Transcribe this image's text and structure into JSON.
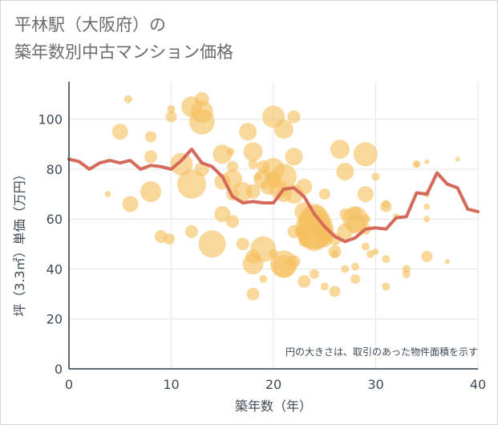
{
  "title_line1": "平林駅（大阪府）の",
  "title_line2": "築年数別中古マンション価格",
  "note": "円の大きさは、取引のあった物件面積を示す",
  "colors": {
    "bubble": "#f5c05f",
    "line": "#d5695a",
    "grid": "#e6e6e6",
    "axis": "#2f3a45"
  },
  "chart_data": {
    "type": "scatter",
    "xlabel": "築年数（年）",
    "ylabel": "坪（3.3㎡）単価（万円）",
    "xlim": [
      0,
      40
    ],
    "ylim": [
      0,
      115
    ],
    "xticks": [
      0,
      10,
      20,
      30,
      40
    ],
    "yticks": [
      0,
      20,
      40,
      60,
      80,
      100
    ],
    "grid": true,
    "average_line": [
      [
        0,
        84
      ],
      [
        1,
        83
      ],
      [
        2,
        80
      ],
      [
        3,
        82.5
      ],
      [
        4,
        83.5
      ],
      [
        5,
        82.5
      ],
      [
        6,
        83.5
      ],
      [
        7,
        80
      ],
      [
        8,
        81.5
      ],
      [
        9,
        81
      ],
      [
        10,
        80
      ],
      [
        11,
        83.5
      ],
      [
        12,
        88
      ],
      [
        13,
        82.5
      ],
      [
        14,
        81
      ],
      [
        15,
        77
      ],
      [
        16,
        69
      ],
      [
        17,
        66.5
      ],
      [
        18,
        67
      ],
      [
        19,
        66.5
      ],
      [
        20,
        66.5
      ],
      [
        21,
        72
      ],
      [
        22,
        72.5
      ],
      [
        23,
        69
      ],
      [
        24,
        62
      ],
      [
        25,
        57
      ],
      [
        26,
        53
      ],
      [
        27,
        51
      ],
      [
        28,
        52.5
      ],
      [
        29,
        56
      ],
      [
        30,
        56.5
      ],
      [
        31,
        56
      ],
      [
        32,
        60.5
      ],
      [
        33,
        61
      ],
      [
        34,
        70.5
      ],
      [
        35,
        70
      ],
      [
        36,
        78.5
      ],
      [
        37,
        74
      ],
      [
        38,
        72.5
      ],
      [
        39,
        64
      ],
      [
        40,
        63
      ]
    ],
    "bubbles": [
      [
        3.8,
        70,
        4
      ],
      [
        5,
        95,
        10
      ],
      [
        5.8,
        108,
        5
      ],
      [
        6,
        66,
        10
      ],
      [
        8,
        93,
        7
      ],
      [
        8,
        85,
        8
      ],
      [
        8,
        71,
        13
      ],
      [
        9,
        53,
        8
      ],
      [
        9.8,
        52,
        7
      ],
      [
        10,
        101,
        7
      ],
      [
        10,
        104,
        5
      ],
      [
        11,
        82,
        14
      ],
      [
        12,
        105,
        13
      ],
      [
        12,
        74,
        18
      ],
      [
        12,
        55,
        8
      ],
      [
        13,
        108,
        9
      ],
      [
        13,
        103,
        14
      ],
      [
        13,
        99,
        16
      ],
      [
        13,
        80,
        9
      ],
      [
        14,
        50,
        17
      ],
      [
        15,
        86,
        12
      ],
      [
        15,
        75,
        10
      ],
      [
        15,
        62,
        10
      ],
      [
        15.8,
        87,
        5
      ],
      [
        16,
        81,
        7
      ],
      [
        16,
        76,
        12
      ],
      [
        16,
        70,
        8
      ],
      [
        16,
        59,
        8
      ],
      [
        17,
        71,
        12
      ],
      [
        17,
        50,
        8
      ],
      [
        17.5,
        95,
        11
      ],
      [
        18,
        87,
        12
      ],
      [
        18,
        82,
        6
      ],
      [
        18,
        71,
        9
      ],
      [
        18,
        45,
        9
      ],
      [
        18,
        42,
        13
      ],
      [
        18,
        30,
        8
      ],
      [
        18.5,
        77,
        5
      ],
      [
        19,
        81,
        8
      ],
      [
        19,
        76,
        12
      ],
      [
        19,
        48,
        16
      ],
      [
        19,
        36,
        5
      ],
      [
        19.5,
        73,
        10
      ],
      [
        20,
        101,
        14
      ],
      [
        20,
        80,
        14
      ],
      [
        20,
        76,
        10
      ],
      [
        20,
        46,
        6
      ],
      [
        20.5,
        72,
        12
      ],
      [
        21,
        96,
        12
      ],
      [
        21,
        77,
        16
      ],
      [
        21,
        70,
        10
      ],
      [
        21,
        42,
        17
      ],
      [
        21,
        41,
        14
      ],
      [
        21.5,
        43,
        5
      ],
      [
        22,
        101,
        8
      ],
      [
        22,
        85,
        11
      ],
      [
        22,
        70,
        12
      ],
      [
        22,
        55,
        8
      ],
      [
        22,
        43,
        8
      ],
      [
        22.5,
        55,
        5
      ],
      [
        23,
        73,
        10
      ],
      [
        23,
        63,
        12
      ],
      [
        23,
        55,
        8
      ],
      [
        23,
        51,
        7
      ],
      [
        23,
        35,
        8
      ],
      [
        24,
        38,
        6
      ],
      [
        24,
        61,
        16
      ],
      [
        24,
        59,
        20
      ],
      [
        24,
        56,
        24
      ],
      [
        24,
        55,
        22
      ],
      [
        24,
        53,
        18
      ],
      [
        25,
        70,
        7
      ],
      [
        25,
        54,
        12
      ],
      [
        25,
        52,
        10
      ],
      [
        25,
        33,
        5
      ],
      [
        26,
        52,
        8
      ],
      [
        26,
        47,
        8
      ],
      [
        26,
        46,
        5
      ],
      [
        26,
        31,
        7
      ],
      [
        26.5,
        88,
        12
      ],
      [
        27,
        79,
        11
      ],
      [
        27,
        62,
        7
      ],
      [
        27,
        55,
        10
      ],
      [
        27,
        40,
        5
      ],
      [
        28,
        62,
        9
      ],
      [
        28,
        60,
        16
      ],
      [
        28,
        58,
        12
      ],
      [
        28,
        41,
        5
      ],
      [
        28,
        36,
        6
      ],
      [
        29,
        86,
        15
      ],
      [
        29,
        70,
        10
      ],
      [
        29,
        60,
        6
      ],
      [
        29,
        56,
        7
      ],
      [
        29,
        49,
        5
      ],
      [
        29.5,
        46,
        5
      ],
      [
        30,
        77,
        5
      ],
      [
        30,
        47,
        4
      ],
      [
        31,
        66,
        5
      ],
      [
        31,
        65,
        7
      ],
      [
        31,
        44,
        5
      ],
      [
        31,
        33,
        5
      ],
      [
        32,
        61,
        4
      ],
      [
        33,
        40,
        5
      ],
      [
        33,
        38,
        5
      ],
      [
        34,
        82,
        5
      ],
      [
        34,
        82,
        3
      ],
      [
        35,
        70,
        4
      ],
      [
        35,
        65,
        4
      ],
      [
        35,
        60,
        4
      ],
      [
        35,
        45,
        7
      ],
      [
        35,
        83,
        3
      ],
      [
        37,
        43,
        3
      ],
      [
        38,
        84,
        3
      ]
    ]
  }
}
